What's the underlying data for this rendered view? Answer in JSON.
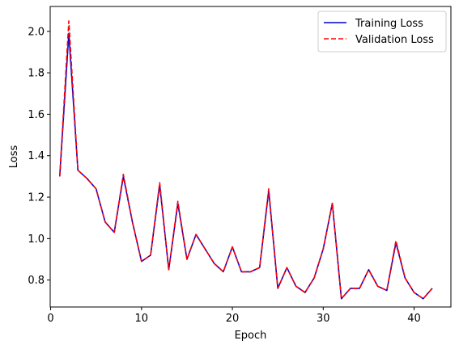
{
  "chart_data": {
    "type": "line",
    "title": "",
    "xlabel": "Epoch",
    "ylabel": "Loss",
    "xlim": [
      -0.05,
      44.05
    ],
    "ylim": [
      0.67,
      2.12
    ],
    "xticks": [
      0,
      10,
      20,
      30,
      40
    ],
    "xtick_labels": [
      "0",
      "10",
      "20",
      "30",
      "40"
    ],
    "yticks": [
      0.8,
      1.0,
      1.2,
      1.4,
      1.6,
      1.8,
      2.0
    ],
    "ytick_labels": [
      "0.8",
      "1.0",
      "1.2",
      "1.4",
      "1.6",
      "1.8",
      "2.0"
    ],
    "grid": false,
    "legend_position": "top-right",
    "x": [
      1,
      2,
      3,
      4,
      5,
      6,
      7,
      8,
      9,
      10,
      11,
      12,
      13,
      14,
      15,
      16,
      17,
      18,
      19,
      20,
      21,
      22,
      23,
      24,
      25,
      26,
      27,
      28,
      29,
      30,
      31,
      32,
      33,
      34,
      35,
      36,
      37,
      38,
      39,
      40,
      41,
      42
    ],
    "series": [
      {
        "name": "Training Loss",
        "color": "#0000cc",
        "style": "solid",
        "values": [
          1.3,
          1.99,
          1.33,
          1.29,
          1.24,
          1.08,
          1.03,
          1.3,
          1.08,
          0.89,
          0.92,
          1.26,
          0.85,
          1.17,
          0.9,
          1.02,
          0.95,
          0.88,
          0.84,
          0.96,
          0.84,
          0.84,
          0.86,
          1.23,
          0.76,
          0.86,
          0.77,
          0.74,
          0.81,
          0.95,
          1.17,
          0.71,
          0.76,
          0.76,
          0.85,
          0.77,
          0.75,
          0.98,
          0.81,
          0.74,
          0.71,
          0.76
        ]
      },
      {
        "name": "Validation Loss",
        "color": "#ff0000",
        "style": "dashed",
        "values": [
          1.3,
          2.05,
          1.33,
          1.29,
          1.24,
          1.08,
          1.03,
          1.31,
          1.08,
          0.89,
          0.92,
          1.27,
          0.85,
          1.18,
          0.9,
          1.02,
          0.95,
          0.88,
          0.84,
          0.96,
          0.84,
          0.84,
          0.86,
          1.24,
          0.76,
          0.86,
          0.77,
          0.74,
          0.81,
          0.95,
          1.17,
          0.71,
          0.76,
          0.76,
          0.85,
          0.77,
          0.75,
          0.99,
          0.81,
          0.74,
          0.71,
          0.76
        ]
      }
    ]
  }
}
